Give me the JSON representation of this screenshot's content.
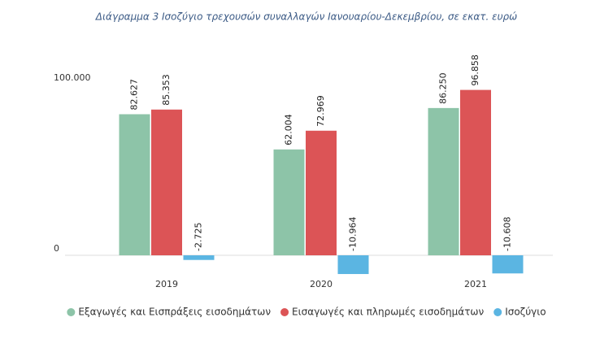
{
  "chart_data": {
    "type": "bar",
    "title": "Διάγραμμα 3 Ισοζύγιο τρεχουσών συναλλαγών Ιανουαρίου-Δεκεμβρίου, σε εκατ. ευρώ",
    "categories": [
      "2019",
      "2020",
      "2021"
    ],
    "series": [
      {
        "name": "Εξαγωγές και Εισπράξεις εισοδημάτων",
        "color": "#8dc4a8",
        "values": [
          82627,
          62004,
          86250
        ],
        "value_labels": [
          "82.627",
          "62.004",
          "86.250"
        ]
      },
      {
        "name": "Εισαγωγές και πληρωμές εισοδημάτων",
        "color": "#dc5456",
        "values": [
          85353,
          72969,
          96858
        ],
        "value_labels": [
          "85.353",
          "72.969",
          "96.858"
        ]
      },
      {
        "name": "Ισοζύγιο",
        "color": "#5bb5e2",
        "values": [
          -2725,
          -10964,
          -10608
        ],
        "value_labels": [
          "-2.725",
          "-10.964",
          "-10.608"
        ]
      }
    ],
    "ylim": [
      -15000,
      110000
    ],
    "yticks": [
      0,
      {
        "value": 100000,
        "label": "100.000"
      }
    ],
    "grid": false,
    "legend": "bottom"
  }
}
